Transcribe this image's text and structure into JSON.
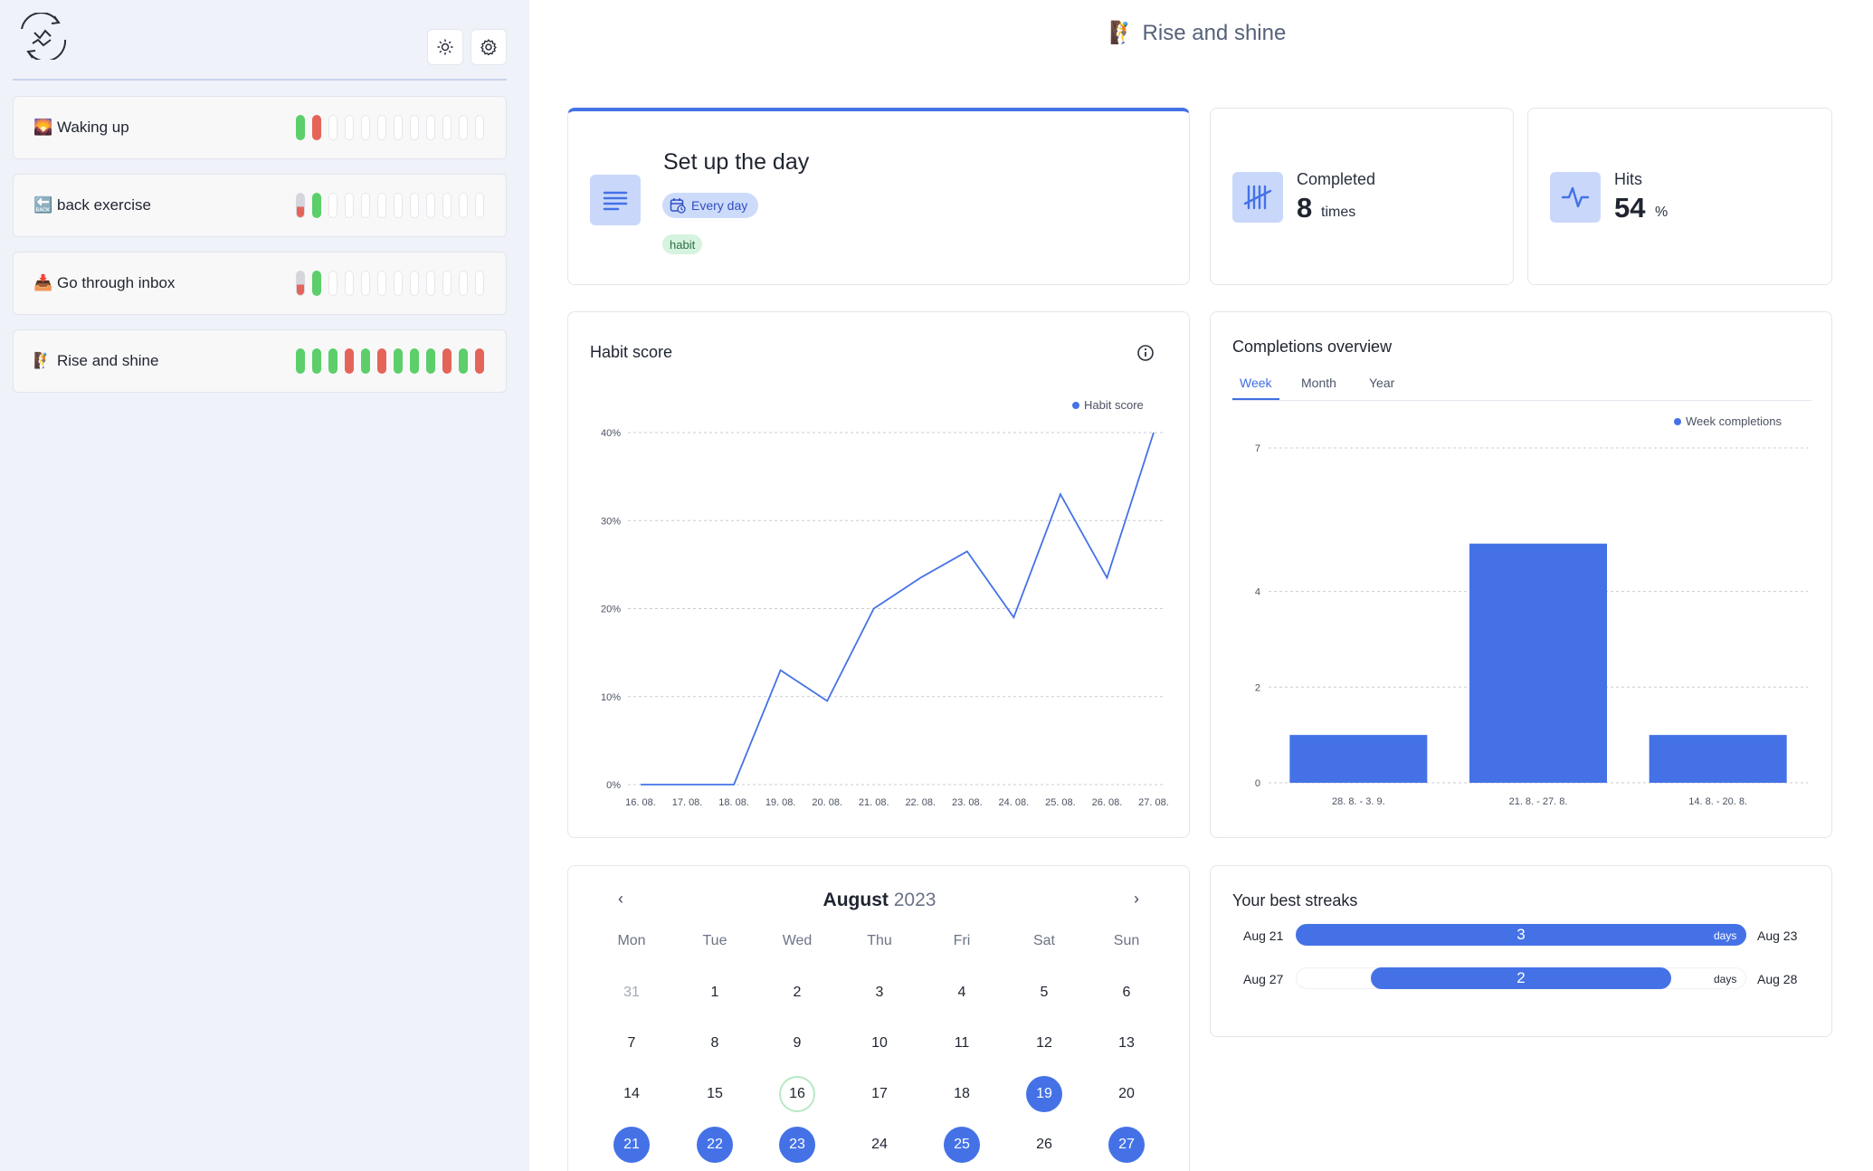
{
  "sidebar": {
    "items": [
      {
        "emoji": "🌄",
        "label": "Waking up",
        "pills": [
          "green",
          "red",
          "empty",
          "empty",
          "empty",
          "empty",
          "empty",
          "empty",
          "empty",
          "empty",
          "empty",
          "empty"
        ]
      },
      {
        "emoji": "🔙",
        "label": "back exercise",
        "pills": [
          "gr-red",
          "green",
          "empty",
          "empty",
          "empty",
          "empty",
          "empty",
          "empty",
          "empty",
          "empty",
          "empty",
          "empty"
        ]
      },
      {
        "emoji": "📥",
        "label": "Go through inbox",
        "pills": [
          "gr-red",
          "green",
          "empty",
          "empty",
          "empty",
          "empty",
          "empty",
          "empty",
          "empty",
          "empty",
          "empty",
          "empty"
        ]
      },
      {
        "emoji": "🧗",
        "label": "Rise and shine",
        "pills": [
          "green",
          "green",
          "green",
          "red",
          "green",
          "red",
          "green",
          "green",
          "green",
          "red",
          "green",
          "red"
        ]
      }
    ]
  },
  "header": {
    "title": "🧗 Rise and shine"
  },
  "habit": {
    "name": "Set up the day",
    "frequency": "Every day",
    "tag": "habit"
  },
  "stats": {
    "completed_label": "Completed",
    "completed_value": "8",
    "completed_unit": "times",
    "hits_label": "Hits",
    "hits_value": "54",
    "hits_unit": "%"
  },
  "habit_score": {
    "title": "Habit score",
    "legend": "Habit score"
  },
  "completions": {
    "title": "Completions overview",
    "tabs": [
      "Week",
      "Month",
      "Year"
    ],
    "active_tab": "Week",
    "legend": "Week completions"
  },
  "chart_data": [
    {
      "type": "line",
      "title": "Habit score",
      "series": [
        {
          "name": "Habit score",
          "color": "#4472e6",
          "values": [
            0,
            0,
            0,
            13,
            9.5,
            20,
            23.5,
            26.5,
            19,
            33,
            23.5,
            40
          ]
        }
      ],
      "x": [
        "16. 08.",
        "17. 08.",
        "18. 08.",
        "19. 08.",
        "20. 08.",
        "21. 08.",
        "22. 08.",
        "23. 08.",
        "24. 08.",
        "25. 08.",
        "26. 08.",
        "27. 08."
      ],
      "y_ticks": [
        "0%",
        "10%",
        "20%",
        "30%",
        "40%"
      ],
      "ylim": [
        0,
        40
      ],
      "grid": true,
      "legend": "top-right"
    },
    {
      "type": "bar",
      "title": "Completions overview",
      "categories": [
        "28. 8. - 3. 9.",
        "21. 8. - 27. 8.",
        "14. 8. - 20. 8."
      ],
      "series": [
        {
          "name": "Week completions",
          "color": "#4472e6",
          "values": [
            1,
            5,
            1
          ]
        }
      ],
      "y_ticks": [
        "0",
        "2",
        "4",
        "7"
      ],
      "ylim": [
        0,
        7
      ],
      "grid": true,
      "legend": "top-right"
    }
  ],
  "calendar": {
    "month": "August",
    "year": "2023",
    "weekdays": [
      "Mon",
      "Tue",
      "Wed",
      "Thu",
      "Fri",
      "Sat",
      "Sun"
    ],
    "weeks": [
      [
        {
          "d": "31",
          "s": "muted"
        },
        {
          "d": "1"
        },
        {
          "d": "2"
        },
        {
          "d": "3"
        },
        {
          "d": "4"
        },
        {
          "d": "5"
        },
        {
          "d": "6"
        }
      ],
      [
        {
          "d": "7"
        },
        {
          "d": "8"
        },
        {
          "d": "9"
        },
        {
          "d": "10"
        },
        {
          "d": "11"
        },
        {
          "d": "12"
        },
        {
          "d": "13"
        }
      ],
      [
        {
          "d": "14"
        },
        {
          "d": "15"
        },
        {
          "d": "16",
          "s": "today"
        },
        {
          "d": "17"
        },
        {
          "d": "18"
        },
        {
          "d": "19",
          "s": "done"
        },
        {
          "d": "20"
        }
      ],
      [
        {
          "d": "21",
          "s": "done"
        },
        {
          "d": "22",
          "s": "done"
        },
        {
          "d": "23",
          "s": "done"
        },
        {
          "d": "24"
        },
        {
          "d": "25",
          "s": "done"
        },
        {
          "d": "26"
        },
        {
          "d": "27",
          "s": "done"
        }
      ]
    ]
  },
  "streaks": {
    "title": "Your best streaks",
    "rows": [
      {
        "start": "Aug 21",
        "end": "Aug 23",
        "count": "3",
        "unit": "days"
      },
      {
        "start": "Aug 27",
        "end": "Aug 28",
        "count": "2",
        "unit": "days"
      }
    ]
  },
  "colors": {
    "accent": "#4472e6",
    "green": "#5ccf6a",
    "red": "#e5645a"
  }
}
